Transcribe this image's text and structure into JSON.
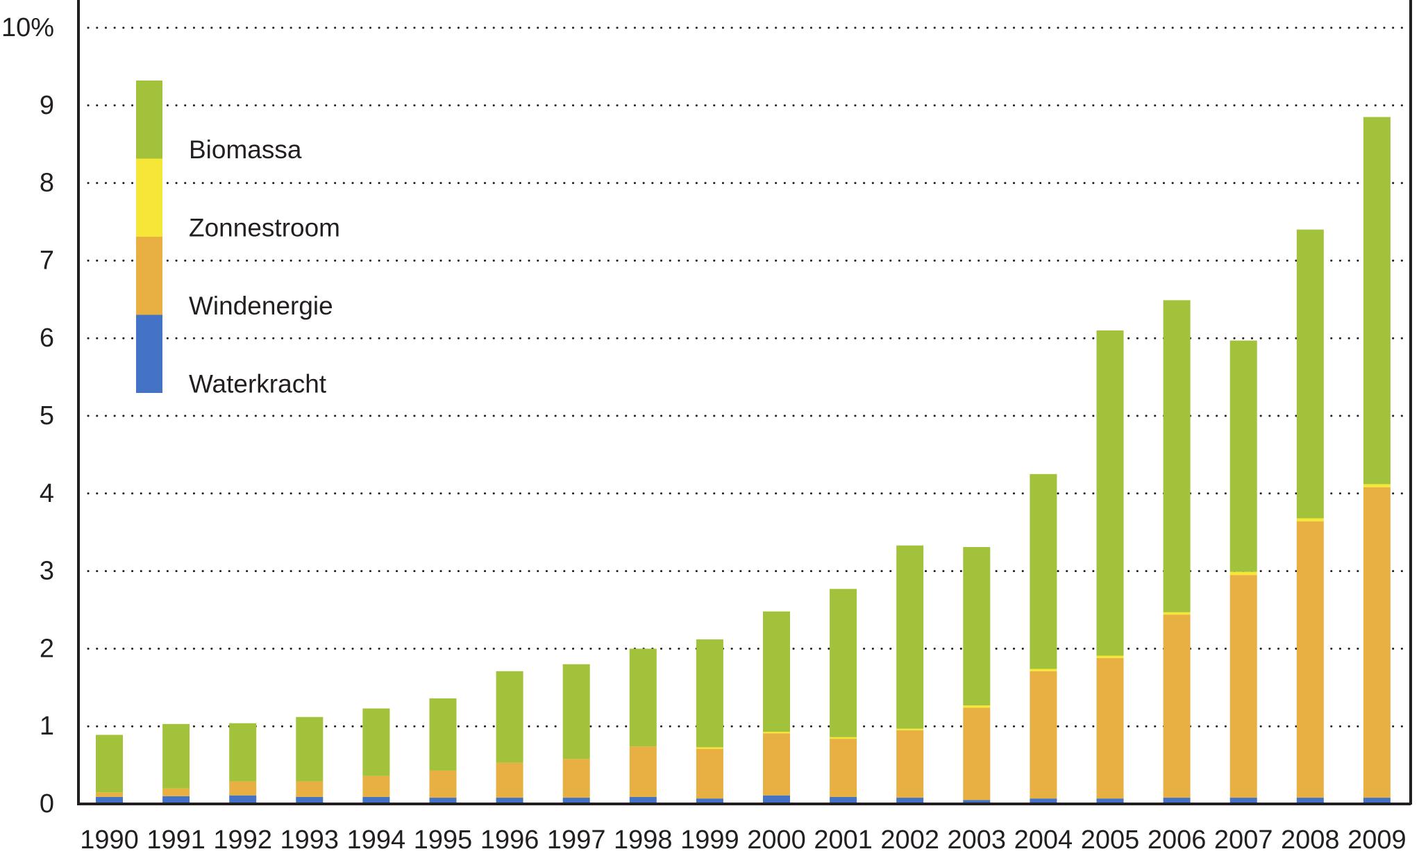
{
  "chart_data": {
    "type": "bar",
    "stacked": true,
    "title": "",
    "xlabel": "",
    "ylabel": "",
    "ylim": [
      0,
      10
    ],
    "y_ticks": [
      "0",
      "1",
      "2",
      "3",
      "4",
      "5",
      "6",
      "7",
      "8",
      "9",
      "10%"
    ],
    "grid": "horizontal-dotted",
    "legend_position": "top-left",
    "categories": [
      "1990",
      "1991",
      "1992",
      "1993",
      "1994",
      "1995",
      "1996",
      "1997",
      "1998",
      "1999",
      "2000",
      "2001",
      "2002",
      "2003",
      "2004",
      "2005",
      "2006",
      "2007",
      "2008",
      "2009"
    ],
    "series": [
      {
        "name": "Waterkracht",
        "color": "#4472c4",
        "values": [
          0.09,
          0.1,
          0.11,
          0.09,
          0.09,
          0.08,
          0.08,
          0.08,
          0.09,
          0.07,
          0.11,
          0.09,
          0.08,
          0.05,
          0.07,
          0.07,
          0.08,
          0.08,
          0.08,
          0.08
        ]
      },
      {
        "name": "Windenergie",
        "color": "#e8b043",
        "values": [
          0.06,
          0.1,
          0.18,
          0.2,
          0.27,
          0.35,
          0.45,
          0.5,
          0.65,
          0.64,
          0.8,
          0.75,
          0.87,
          1.19,
          1.64,
          1.81,
          2.36,
          2.87,
          3.56,
          4.0
        ]
      },
      {
        "name": "Zonnestroom",
        "color": "#f5e638",
        "values": [
          0.0,
          0.0,
          0.0,
          0.0,
          0.0,
          0.0,
          0.0,
          0.0,
          0.0,
          0.02,
          0.02,
          0.02,
          0.02,
          0.03,
          0.03,
          0.03,
          0.03,
          0.04,
          0.04,
          0.04
        ]
      },
      {
        "name": "Biomassa",
        "color": "#a1c23a",
        "values": [
          0.74,
          0.83,
          0.75,
          0.83,
          0.87,
          0.93,
          1.18,
          1.22,
          1.26,
          1.39,
          1.55,
          1.91,
          2.36,
          2.04,
          2.51,
          4.19,
          4.02,
          2.98,
          3.72,
          4.73
        ]
      }
    ]
  }
}
